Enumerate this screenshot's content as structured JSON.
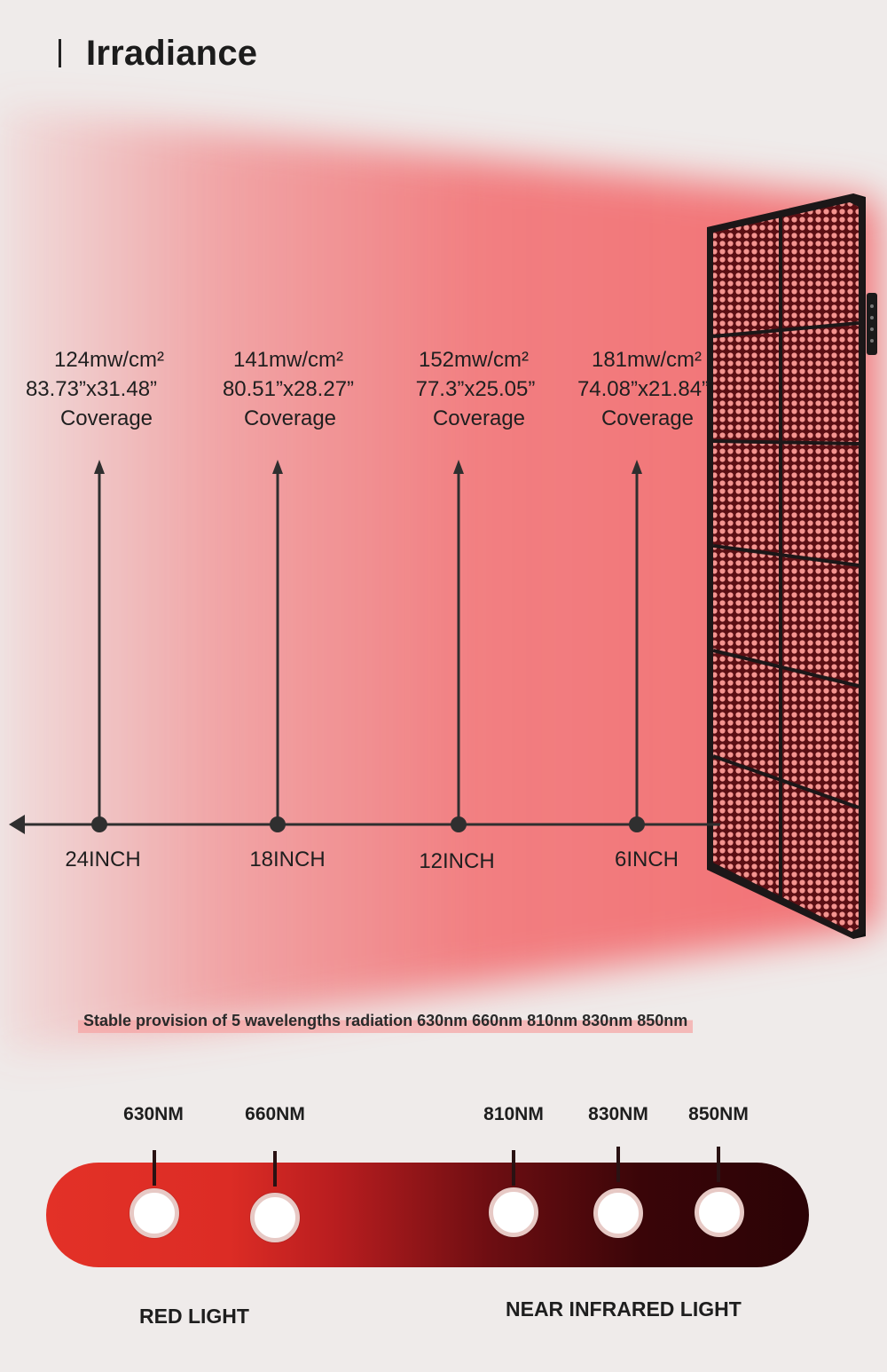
{
  "heading": "Irradiance",
  "readings": [
    {
      "irradiance": "124mw/cm²",
      "size": "83.73”x31.48”",
      "coverage": "Coverage",
      "distance": "24INCH"
    },
    {
      "irradiance": "141mw/cm²",
      "size": "80.51”x28.27”",
      "coverage": "Coverage",
      "distance": "18INCH"
    },
    {
      "irradiance": "152mw/cm²",
      "size": "77.3”x25.05”",
      "coverage": "Coverage",
      "distance": "12INCH"
    },
    {
      "irradiance": "181mw/cm²",
      "size": "74.08”x21.84”",
      "coverage": "Coverage",
      "distance": "6INCH"
    }
  ],
  "caption": "Stable provision of 5 wavelengths radiation 630nm 660nm 810nm 830nm 850nm",
  "wavelengths": [
    "630NM",
    "660NM",
    "810NM",
    "830NM",
    "850NM"
  ],
  "groups": {
    "red": "RED LIGHT",
    "nir": "NEAR INFRARED LIGHT"
  },
  "colors": {
    "background": "#efebea",
    "beam": "#f26b6e",
    "led": "#f3938f",
    "panel_frame": "#1a1516",
    "red_light": "#e33127",
    "near_infrared": "#2b0306"
  }
}
